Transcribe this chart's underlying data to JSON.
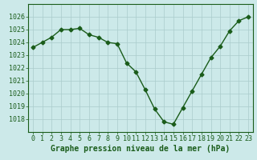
{
  "x": [
    0,
    1,
    2,
    3,
    4,
    5,
    6,
    7,
    8,
    9,
    10,
    11,
    12,
    13,
    14,
    15,
    16,
    17,
    18,
    19,
    20,
    21,
    22,
    23
  ],
  "y": [
    1023.6,
    1024.0,
    1024.4,
    1025.0,
    1025.0,
    1025.1,
    1024.6,
    1024.4,
    1024.0,
    1023.9,
    1022.4,
    1021.7,
    1020.3,
    1018.8,
    1017.8,
    1017.6,
    1018.9,
    1020.2,
    1021.5,
    1022.8,
    1023.7,
    1024.9,
    1025.7,
    1026.0
  ],
  "line_color": "#1a5c1a",
  "marker": "D",
  "markersize": 2.5,
  "linewidth": 1.0,
  "bg_color": "#cce9e9",
  "grid_color": "#aacccc",
  "axis_color": "#1a5c1a",
  "tick_label_color": "#1a5c1a",
  "xlabel": "Graphe pression niveau de la mer (hPa)",
  "xlabel_color": "#1a5c1a",
  "xlabel_fontsize": 7.0,
  "tick_fontsize": 6.0,
  "ylim": [
    1017,
    1027
  ],
  "yticks": [
    1018,
    1019,
    1020,
    1021,
    1022,
    1023,
    1024,
    1025,
    1026
  ],
  "xlim": [
    -0.5,
    23.5
  ],
  "xticks": [
    0,
    1,
    2,
    3,
    4,
    5,
    6,
    7,
    8,
    9,
    10,
    11,
    12,
    13,
    14,
    15,
    16,
    17,
    18,
    19,
    20,
    21,
    22,
    23
  ]
}
